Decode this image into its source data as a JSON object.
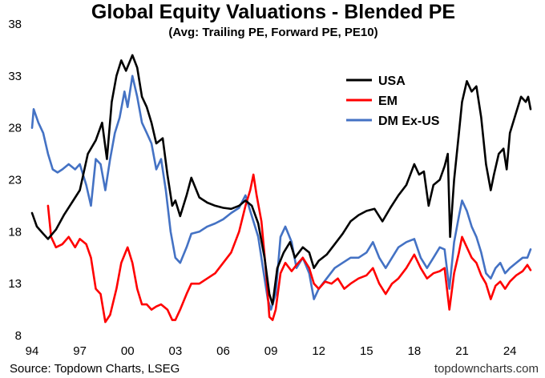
{
  "chart_data": {
    "type": "line",
    "title": "Global Equity Valuations - Blended PE",
    "subtitle": "(Avg: Trailing PE, Forward PE, PE10)",
    "ylim": [
      8,
      38
    ],
    "yticks": [
      8,
      13,
      18,
      23,
      28,
      33,
      38
    ],
    "xlim": [
      1994,
      2025.3
    ],
    "xticks": [
      {
        "value": 1994,
        "label": "94"
      },
      {
        "value": 1997,
        "label": "97"
      },
      {
        "value": 2000,
        "label": "00"
      },
      {
        "value": 2003,
        "label": "03"
      },
      {
        "value": 2006,
        "label": "06"
      },
      {
        "value": 2009,
        "label": "09"
      },
      {
        "value": 2012,
        "label": "12"
      },
      {
        "value": 2015,
        "label": "15"
      },
      {
        "value": 2018,
        "label": "18"
      },
      {
        "value": 2021,
        "label": "21"
      },
      {
        "value": 2024,
        "label": "24"
      }
    ],
    "grid": false,
    "legend_position": "top-right",
    "series": [
      {
        "name": "USA",
        "color": "#000000",
        "points": [
          [
            1994.0,
            19.8
          ],
          [
            1994.3,
            18.5
          ],
          [
            1994.7,
            17.8
          ],
          [
            1995.0,
            17.3
          ],
          [
            1995.5,
            18.2
          ],
          [
            1996.0,
            19.6
          ],
          [
            1996.5,
            20.8
          ],
          [
            1997.0,
            22.0
          ],
          [
            1997.5,
            25.5
          ],
          [
            1998.0,
            26.8
          ],
          [
            1998.4,
            28.5
          ],
          [
            1998.7,
            25.0
          ],
          [
            1999.0,
            30.5
          ],
          [
            1999.3,
            33.0
          ],
          [
            1999.6,
            34.5
          ],
          [
            1999.9,
            33.5
          ],
          [
            2000.3,
            35.0
          ],
          [
            2000.6,
            33.8
          ],
          [
            2000.9,
            31.0
          ],
          [
            2001.2,
            30.0
          ],
          [
            2001.5,
            28.5
          ],
          [
            2001.8,
            26.5
          ],
          [
            2002.2,
            27.0
          ],
          [
            2002.5,
            23.5
          ],
          [
            2002.8,
            20.5
          ],
          [
            2003.0,
            21.0
          ],
          [
            2003.3,
            19.5
          ],
          [
            2003.7,
            21.5
          ],
          [
            2004.0,
            23.2
          ],
          [
            2004.5,
            21.3
          ],
          [
            2005.0,
            20.8
          ],
          [
            2005.5,
            20.5
          ],
          [
            2006.0,
            20.3
          ],
          [
            2006.5,
            20.2
          ],
          [
            2007.0,
            20.5
          ],
          [
            2007.4,
            21.0
          ],
          [
            2007.8,
            20.5
          ],
          [
            2008.2,
            18.8
          ],
          [
            2008.6,
            15.5
          ],
          [
            2008.9,
            12.0
          ],
          [
            2009.1,
            11.0
          ],
          [
            2009.4,
            14.5
          ],
          [
            2009.8,
            16.0
          ],
          [
            2010.2,
            17.0
          ],
          [
            2010.5,
            15.5
          ],
          [
            2011.0,
            16.5
          ],
          [
            2011.4,
            16.0
          ],
          [
            2011.7,
            14.5
          ],
          [
            2012.0,
            15.2
          ],
          [
            2012.5,
            15.8
          ],
          [
            2013.0,
            16.8
          ],
          [
            2013.5,
            17.8
          ],
          [
            2014.0,
            19.0
          ],
          [
            2014.5,
            19.6
          ],
          [
            2015.0,
            20.0
          ],
          [
            2015.5,
            20.2
          ],
          [
            2016.0,
            19.0
          ],
          [
            2016.5,
            20.3
          ],
          [
            2017.0,
            21.5
          ],
          [
            2017.5,
            22.5
          ],
          [
            2018.0,
            24.5
          ],
          [
            2018.3,
            23.5
          ],
          [
            2018.6,
            23.8
          ],
          [
            2018.9,
            20.5
          ],
          [
            2019.2,
            22.5
          ],
          [
            2019.6,
            23.0
          ],
          [
            2019.9,
            24.3
          ],
          [
            2020.1,
            25.5
          ],
          [
            2020.25,
            17.5
          ],
          [
            2020.5,
            23.0
          ],
          [
            2020.8,
            27.5
          ],
          [
            2021.0,
            30.5
          ],
          [
            2021.3,
            32.5
          ],
          [
            2021.6,
            31.5
          ],
          [
            2021.9,
            32.0
          ],
          [
            2022.2,
            29.0
          ],
          [
            2022.5,
            24.5
          ],
          [
            2022.8,
            22.0
          ],
          [
            2023.0,
            23.5
          ],
          [
            2023.3,
            25.5
          ],
          [
            2023.6,
            26.0
          ],
          [
            2023.8,
            24.0
          ],
          [
            2024.0,
            27.5
          ],
          [
            2024.4,
            29.5
          ],
          [
            2024.7,
            31.0
          ],
          [
            2025.0,
            30.5
          ],
          [
            2025.15,
            31.0
          ],
          [
            2025.3,
            29.8
          ]
        ]
      },
      {
        "name": "EM",
        "color": "#ff0000",
        "points": [
          [
            1995.0,
            20.5
          ],
          [
            1995.2,
            17.5
          ],
          [
            1995.5,
            16.5
          ],
          [
            1995.9,
            16.8
          ],
          [
            1996.3,
            17.5
          ],
          [
            1996.7,
            16.5
          ],
          [
            1997.0,
            17.3
          ],
          [
            1997.4,
            16.8
          ],
          [
            1997.7,
            15.5
          ],
          [
            1998.0,
            12.5
          ],
          [
            1998.3,
            12.0
          ],
          [
            1998.6,
            9.3
          ],
          [
            1998.9,
            10.0
          ],
          [
            1999.3,
            12.5
          ],
          [
            1999.6,
            15.0
          ],
          [
            2000.0,
            16.5
          ],
          [
            2000.3,
            15.0
          ],
          [
            2000.6,
            12.5
          ],
          [
            2000.9,
            11.0
          ],
          [
            2001.2,
            11.0
          ],
          [
            2001.5,
            10.5
          ],
          [
            2001.8,
            10.8
          ],
          [
            2002.1,
            11.0
          ],
          [
            2002.5,
            10.5
          ],
          [
            2002.8,
            9.5
          ],
          [
            2003.0,
            9.5
          ],
          [
            2003.3,
            10.5
          ],
          [
            2003.7,
            12.0
          ],
          [
            2004.0,
            13.0
          ],
          [
            2004.5,
            13.0
          ],
          [
            2005.0,
            13.5
          ],
          [
            2005.5,
            14.0
          ],
          [
            2006.0,
            15.0
          ],
          [
            2006.5,
            16.0
          ],
          [
            2007.0,
            18.0
          ],
          [
            2007.4,
            20.5
          ],
          [
            2007.7,
            22.0
          ],
          [
            2007.9,
            23.5
          ],
          [
            2008.1,
            21.5
          ],
          [
            2008.4,
            19.0
          ],
          [
            2008.7,
            14.0
          ],
          [
            2008.9,
            9.8
          ],
          [
            2009.1,
            9.5
          ],
          [
            2009.3,
            10.5
          ],
          [
            2009.6,
            14.0
          ],
          [
            2009.9,
            15.0
          ],
          [
            2010.3,
            14.2
          ],
          [
            2010.6,
            14.8
          ],
          [
            2011.0,
            15.5
          ],
          [
            2011.4,
            14.5
          ],
          [
            2011.7,
            13.0
          ],
          [
            2012.0,
            12.5
          ],
          [
            2012.4,
            13.2
          ],
          [
            2012.8,
            13.0
          ],
          [
            2013.2,
            13.5
          ],
          [
            2013.6,
            12.5
          ],
          [
            2014.0,
            13.0
          ],
          [
            2014.5,
            13.5
          ],
          [
            2015.0,
            13.8
          ],
          [
            2015.4,
            14.5
          ],
          [
            2015.8,
            13.0
          ],
          [
            2016.2,
            12.0
          ],
          [
            2016.6,
            13.0
          ],
          [
            2017.0,
            13.5
          ],
          [
            2017.5,
            14.5
          ],
          [
            2018.0,
            15.8
          ],
          [
            2018.4,
            14.5
          ],
          [
            2018.8,
            13.5
          ],
          [
            2019.2,
            14.0
          ],
          [
            2019.6,
            14.2
          ],
          [
            2019.9,
            14.5
          ],
          [
            2020.2,
            10.5
          ],
          [
            2020.5,
            14.0
          ],
          [
            2020.8,
            16.0
          ],
          [
            2021.0,
            17.5
          ],
          [
            2021.3,
            16.5
          ],
          [
            2021.6,
            15.5
          ],
          [
            2021.9,
            15.0
          ],
          [
            2022.2,
            13.8
          ],
          [
            2022.5,
            13.0
          ],
          [
            2022.8,
            11.5
          ],
          [
            2023.1,
            12.8
          ],
          [
            2023.4,
            13.2
          ],
          [
            2023.7,
            12.5
          ],
          [
            2024.0,
            13.2
          ],
          [
            2024.4,
            13.8
          ],
          [
            2024.8,
            14.2
          ],
          [
            2025.1,
            14.8
          ],
          [
            2025.3,
            14.3
          ]
        ]
      },
      {
        "name": "DM Ex-US",
        "color": "#4472c4",
        "points": [
          [
            1994.0,
            28.0
          ],
          [
            1994.1,
            29.8
          ],
          [
            1994.4,
            28.5
          ],
          [
            1994.7,
            27.5
          ],
          [
            1995.0,
            25.5
          ],
          [
            1995.3,
            24.0
          ],
          [
            1995.6,
            23.7
          ],
          [
            1995.9,
            24.0
          ],
          [
            1996.3,
            24.5
          ],
          [
            1996.7,
            24.0
          ],
          [
            1997.0,
            24.5
          ],
          [
            1997.4,
            22.5
          ],
          [
            1997.7,
            20.5
          ],
          [
            1998.0,
            25.0
          ],
          [
            1998.3,
            24.5
          ],
          [
            1998.6,
            22.0
          ],
          [
            1998.9,
            25.0
          ],
          [
            1999.2,
            27.5
          ],
          [
            1999.5,
            29.0
          ],
          [
            1999.8,
            31.5
          ],
          [
            2000.0,
            30.0
          ],
          [
            2000.3,
            33.0
          ],
          [
            2000.6,
            31.0
          ],
          [
            2000.9,
            28.5
          ],
          [
            2001.2,
            27.5
          ],
          [
            2001.5,
            26.5
          ],
          [
            2001.8,
            24.0
          ],
          [
            2002.1,
            25.0
          ],
          [
            2002.4,
            22.0
          ],
          [
            2002.7,
            18.0
          ],
          [
            2003.0,
            15.5
          ],
          [
            2003.3,
            15.0
          ],
          [
            2003.7,
            16.5
          ],
          [
            2004.0,
            17.8
          ],
          [
            2004.5,
            18.0
          ],
          [
            2005.0,
            18.5
          ],
          [
            2005.5,
            18.8
          ],
          [
            2006.0,
            19.2
          ],
          [
            2006.5,
            19.8
          ],
          [
            2007.0,
            20.3
          ],
          [
            2007.4,
            21.5
          ],
          [
            2007.8,
            19.5
          ],
          [
            2008.2,
            17.5
          ],
          [
            2008.5,
            14.5
          ],
          [
            2008.8,
            11.5
          ],
          [
            2009.0,
            10.5
          ],
          [
            2009.3,
            12.0
          ],
          [
            2009.6,
            17.5
          ],
          [
            2009.9,
            18.5
          ],
          [
            2010.3,
            17.0
          ],
          [
            2010.6,
            14.5
          ],
          [
            2011.0,
            15.5
          ],
          [
            2011.4,
            14.0
          ],
          [
            2011.7,
            11.5
          ],
          [
            2012.0,
            12.5
          ],
          [
            2012.5,
            13.5
          ],
          [
            2013.0,
            14.5
          ],
          [
            2013.5,
            15.0
          ],
          [
            2014.0,
            15.5
          ],
          [
            2014.5,
            15.5
          ],
          [
            2015.0,
            16.0
          ],
          [
            2015.4,
            17.0
          ],
          [
            2015.8,
            15.5
          ],
          [
            2016.2,
            14.5
          ],
          [
            2016.6,
            15.5
          ],
          [
            2017.0,
            16.5
          ],
          [
            2017.5,
            17.0
          ],
          [
            2018.0,
            17.3
          ],
          [
            2018.4,
            15.5
          ],
          [
            2018.8,
            14.5
          ],
          [
            2019.2,
            15.5
          ],
          [
            2019.6,
            16.5
          ],
          [
            2019.9,
            16.3
          ],
          [
            2020.2,
            12.5
          ],
          [
            2020.5,
            17.0
          ],
          [
            2020.8,
            19.5
          ],
          [
            2021.0,
            21.0
          ],
          [
            2021.3,
            20.0
          ],
          [
            2021.6,
            18.5
          ],
          [
            2021.9,
            17.5
          ],
          [
            2022.2,
            16.0
          ],
          [
            2022.5,
            14.0
          ],
          [
            2022.8,
            13.5
          ],
          [
            2023.1,
            14.5
          ],
          [
            2023.4,
            15.0
          ],
          [
            2023.7,
            14.0
          ],
          [
            2024.0,
            14.5
          ],
          [
            2024.4,
            15.0
          ],
          [
            2024.8,
            15.5
          ],
          [
            2025.1,
            15.5
          ],
          [
            2025.3,
            16.3
          ]
        ]
      }
    ],
    "source": "Source: Topdown Charts, LSEG",
    "credit": "topdowncharts.com"
  }
}
